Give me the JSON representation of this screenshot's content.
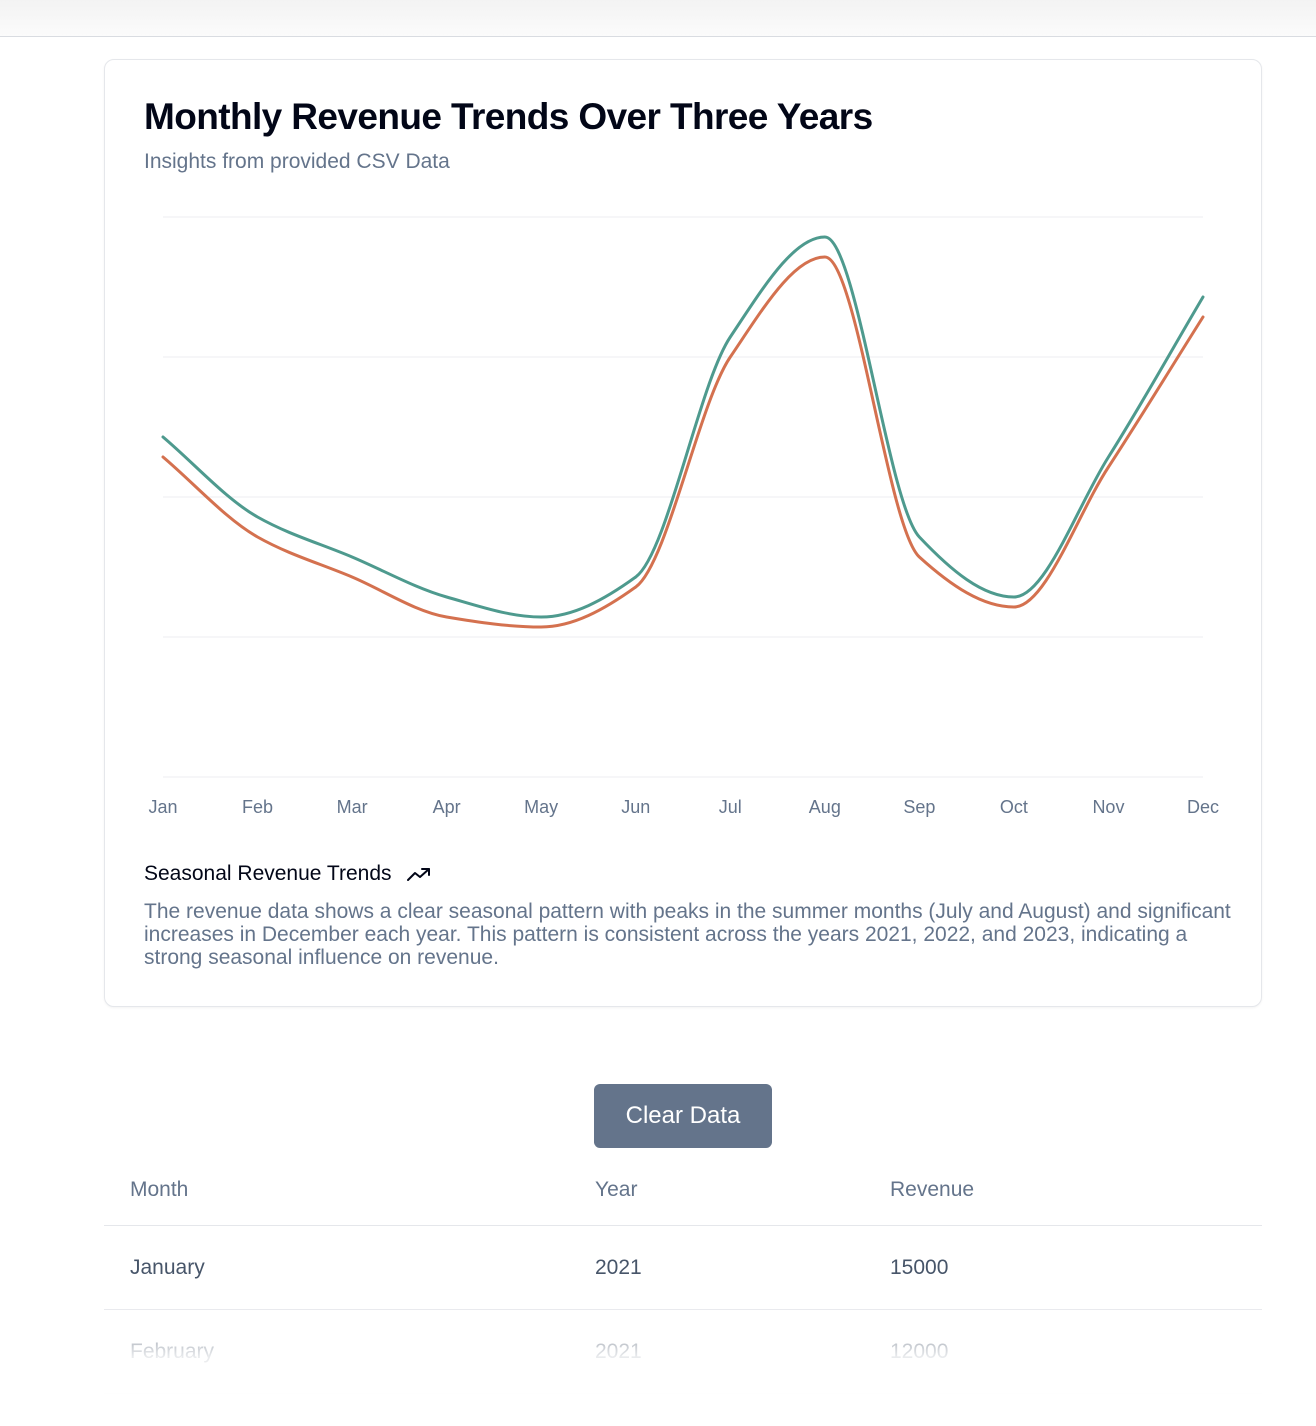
{
  "card": {
    "title": "Monthly Revenue Trends Over Three Years",
    "subtitle": "Insights from provided CSV Data",
    "footer_title": "Seasonal Revenue Trends",
    "footer_icon": "trending-up-icon",
    "footer_text": "The revenue data shows a clear seasonal pattern with peaks in the summer months (July and August) and significant increases in December each year. This pattern is consistent across the years 2021, 2022, and 2023, indicating a strong seasonal influence on revenue."
  },
  "chart_data": {
    "type": "line",
    "title": "Monthly Revenue Trends Over Three Years",
    "subtitle": "Insights from provided CSV Data",
    "categories": [
      "Jan",
      "Feb",
      "Mar",
      "Apr",
      "May",
      "Jun",
      "Jul",
      "Aug",
      "Sep",
      "Oct",
      "Nov",
      "Dec"
    ],
    "series": [
      {
        "color": "#4e9a8e",
        "values": [
          17,
          13,
          11,
          9,
          8,
          10,
          22,
          27,
          12,
          9,
          16,
          24
        ]
      },
      {
        "color": "#d4714f",
        "values": [
          16,
          12,
          10,
          8,
          7.5,
          9.5,
          21,
          26,
          11,
          8.5,
          15.5,
          23
        ]
      }
    ],
    "ylim": [
      0,
      28
    ],
    "grid": true,
    "legend": "none"
  },
  "actions": {
    "clear_label": "Clear Data"
  },
  "table": {
    "headers": [
      "Month",
      "Year",
      "Revenue"
    ],
    "rows": [
      [
        "January",
        "2021",
        "15000"
      ],
      [
        "February",
        "2021",
        "12000"
      ]
    ]
  }
}
